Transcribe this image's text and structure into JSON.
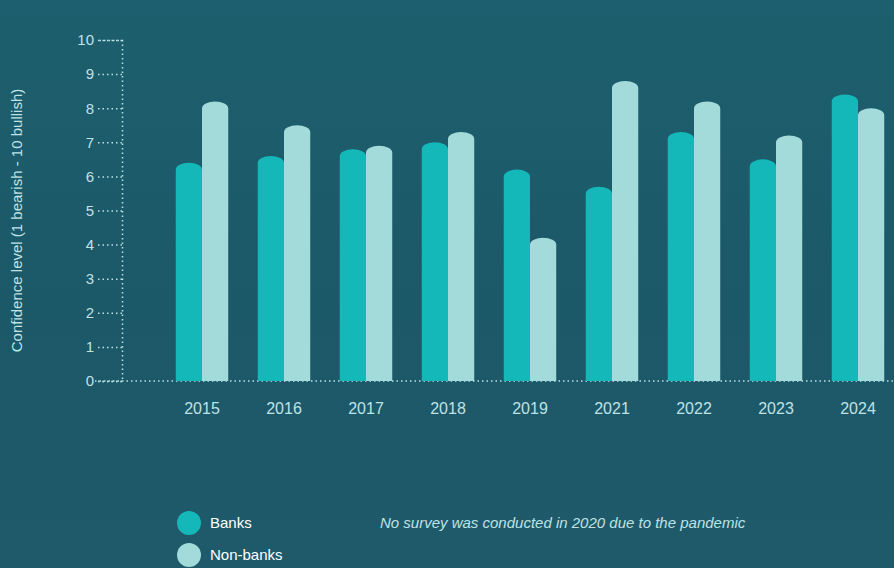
{
  "chart_data": {
    "type": "bar",
    "y_label": "Confidence level (1 bearish - 10 bullish)",
    "categories": [
      "2015",
      "2016",
      "2017",
      "2018",
      "2019",
      "2021",
      "2022",
      "2023",
      "2024"
    ],
    "series": [
      {
        "name": "Banks",
        "color": "#14b8b8",
        "values": [
          6.4,
          6.6,
          6.8,
          7.0,
          6.2,
          5.7,
          7.3,
          6.5,
          8.4
        ]
      },
      {
        "name": "Non-banks",
        "color": "#a3dada",
        "values": [
          8.2,
          7.5,
          6.9,
          7.3,
          4.2,
          8.8,
          8.2,
          7.2,
          8.0
        ]
      }
    ],
    "ylim": [
      0,
      10
    ],
    "yticks": [
      0,
      1,
      2,
      3,
      4,
      5,
      6,
      7,
      8,
      9,
      10
    ],
    "grid": false,
    "legend": "bottom-left",
    "annotations": [
      "No survey was conducted in 2020 due to the pandemic"
    ]
  }
}
